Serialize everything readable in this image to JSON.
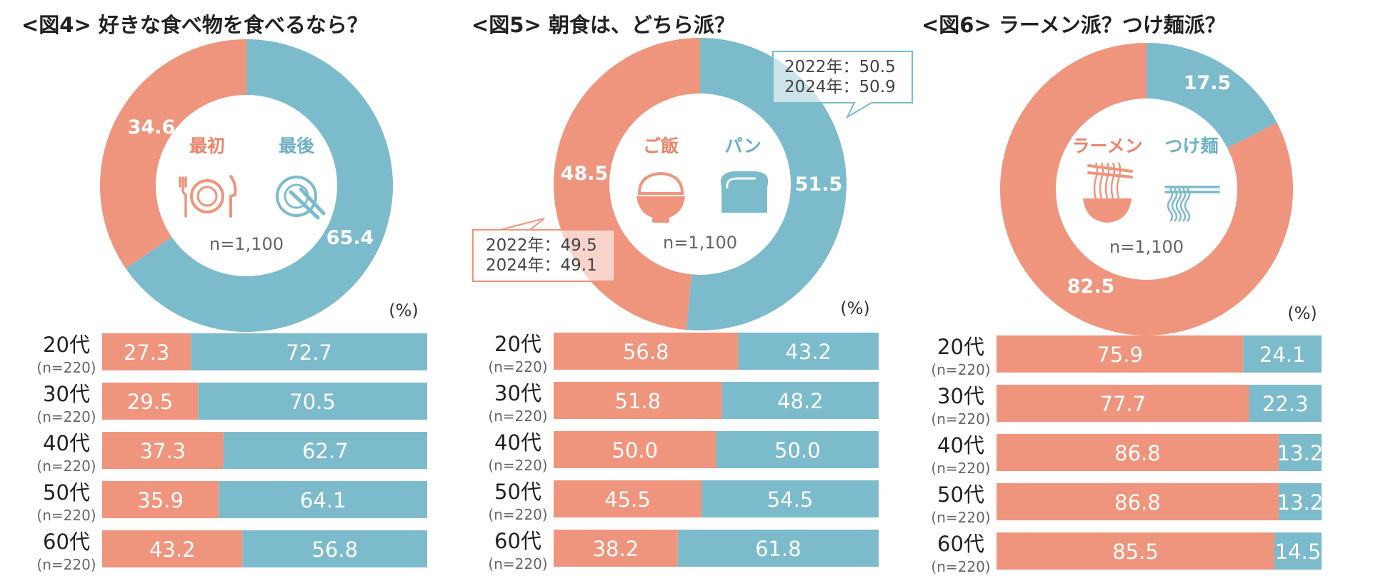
{
  "colors": {
    "salmon": "#EF957D",
    "blue": "#7CBBCB",
    "salmon_text": "#E8866C",
    "blue_text": "#6FB1C4",
    "gray_text": "#666666",
    "callout_border": "#7CBBCB"
  },
  "chart_data": [
    {
      "type": "pie",
      "variant": "donut",
      "title": "<図4> 好きな食べ物を食べるなら？",
      "n_label": "n=1,100",
      "unit_label": "(%)",
      "slices": [
        {
          "name": "最初",
          "value": 34.6,
          "color": "salmon",
          "icon": "plate-fork-knife-icon"
        },
        {
          "name": "最後",
          "value": 65.4,
          "color": "blue",
          "icon": "empty-plate-icon"
        }
      ],
      "bar_table": {
        "type": "bar",
        "stacked": true,
        "categories": [
          "20代",
          "30代",
          "40代",
          "50代",
          "60代"
        ],
        "sublabels": [
          "(n=220)",
          "(n=220)",
          "(n=220)",
          "(n=220)",
          "(n=220)"
        ],
        "series": [
          {
            "values": [
              27.3,
              29.5,
              37.3,
              35.9,
              43.2
            ],
            "color": "salmon"
          },
          {
            "values": [
              72.7,
              70.5,
              62.7,
              64.1,
              56.8
            ],
            "color": "blue"
          }
        ]
      }
    },
    {
      "type": "pie",
      "variant": "donut",
      "title": "<図5> 朝食は、どちら派？",
      "n_label": "n=1,100",
      "unit_label": "(%)",
      "slices": [
        {
          "name": "ご飯",
          "value": 48.5,
          "color": "salmon",
          "icon": "rice-bowl-icon"
        },
        {
          "name": "パン",
          "value": 51.5,
          "color": "blue",
          "icon": "bread-icon"
        }
      ],
      "callouts": [
        {
          "lines": [
            "2022年：50.5",
            "2024年：50.9"
          ]
        },
        {
          "lines": [
            "2022年：49.5",
            "2024年：49.1"
          ]
        }
      ],
      "bar_table": {
        "type": "bar",
        "stacked": true,
        "categories": [
          "20代",
          "30代",
          "40代",
          "50代",
          "60代"
        ],
        "sublabels": [
          "(n=220)",
          "(n=220)",
          "(n=220)",
          "(n=220)",
          "(n=220)"
        ],
        "series": [
          {
            "values": [
              56.8,
              51.8,
              50.0,
              45.5,
              38.2
            ],
            "color": "salmon"
          },
          {
            "values": [
              43.2,
              48.2,
              50.0,
              54.5,
              61.8
            ],
            "color": "blue"
          }
        ]
      }
    },
    {
      "type": "pie",
      "variant": "donut",
      "title": "<図6> ラーメン派？つけ麺派？",
      "n_label": "n=1,100",
      "unit_label": "(%)",
      "slices": [
        {
          "name": "ラーメン",
          "value": 82.5,
          "color": "salmon",
          "icon": "ramen-bowl-icon"
        },
        {
          "name": "つけ麺",
          "value": 17.5,
          "color": "blue",
          "icon": "tsukemen-noodles-icon"
        }
      ],
      "bar_table": {
        "type": "bar",
        "stacked": true,
        "categories": [
          "20代",
          "30代",
          "40代",
          "50代",
          "60代"
        ],
        "sublabels": [
          "(n=220)",
          "(n=220)",
          "(n=220)",
          "(n=220)",
          "(n=220)"
        ],
        "series": [
          {
            "values": [
              75.9,
              77.7,
              86.8,
              86.8,
              85.5
            ],
            "color": "salmon"
          },
          {
            "values": [
              24.1,
              22.3,
              13.2,
              13.2,
              14.5
            ],
            "color": "blue"
          }
        ]
      }
    }
  ]
}
